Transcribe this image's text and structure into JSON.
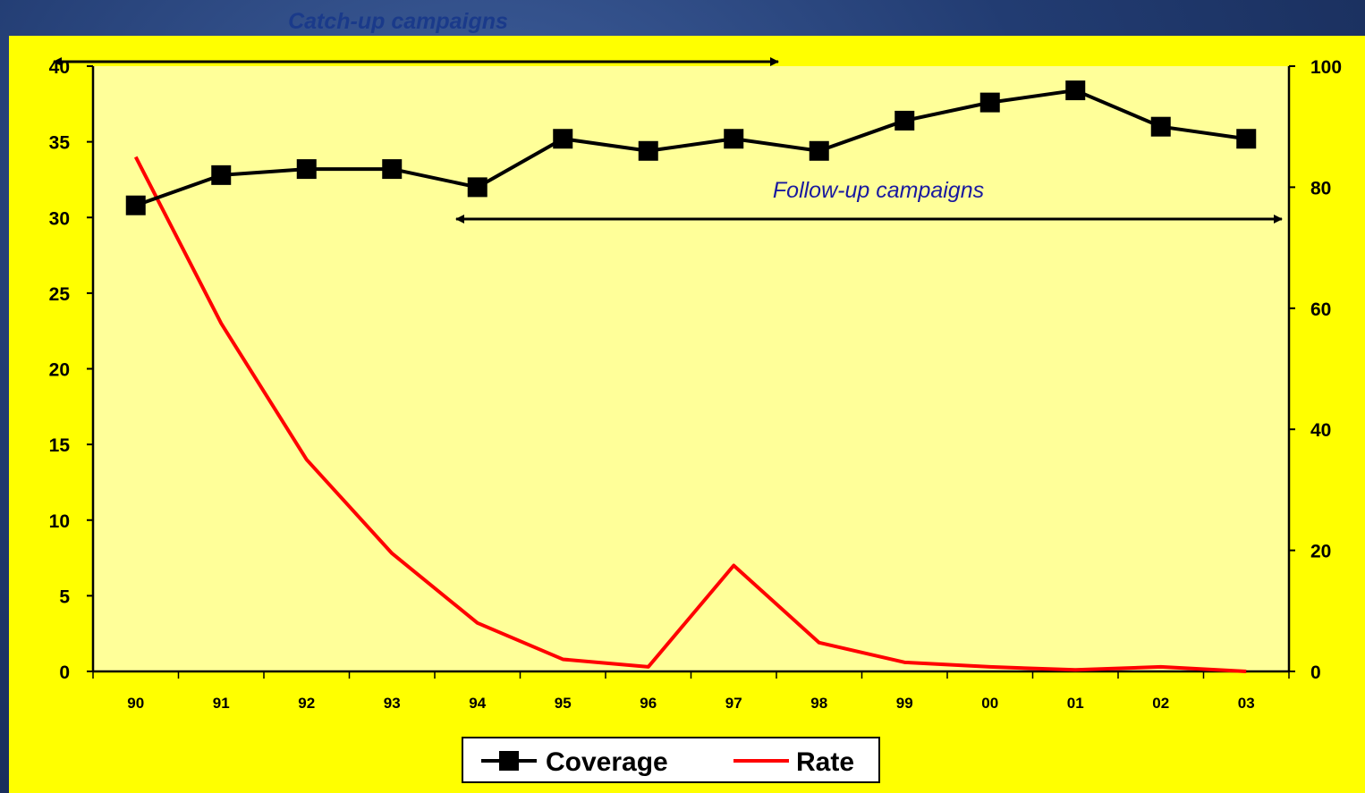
{
  "chart_data": {
    "type": "line",
    "title": "",
    "xlabel": "",
    "ylabel": "",
    "categories": [
      "90",
      "91",
      "92",
      "93",
      "94",
      "95",
      "96",
      "97",
      "98",
      "99",
      "00",
      "01",
      "02",
      "03"
    ],
    "y_left": {
      "ylim": [
        0,
        40
      ],
      "ticks": [
        0,
        5,
        10,
        15,
        20,
        25,
        30,
        35,
        40
      ]
    },
    "y_right": {
      "ylim": [
        0,
        100
      ],
      "ticks": [
        0,
        20,
        40,
        60,
        80,
        100
      ]
    },
    "series": [
      {
        "name": "Coverage",
        "axis": "right",
        "color": "#000000",
        "marker": "square",
        "values": [
          77,
          82,
          83,
          83,
          80,
          88,
          86,
          88,
          86,
          91,
          94,
          96,
          90,
          88
        ]
      },
      {
        "name": "Rate",
        "axis": "left",
        "color": "#ff0000",
        "marker": "none",
        "values": [
          34,
          23,
          14,
          7.8,
          3.2,
          0.8,
          0.3,
          7,
          1.9,
          0.6,
          0.3,
          0.1,
          0.3,
          0
        ]
      }
    ],
    "annotations": [
      {
        "text": "Catch-up campaigns",
        "color": "#1a3a8a",
        "from": "90",
        "to": "97"
      },
      {
        "text": "Follow-up campaigns",
        "color": "#1a1aa0",
        "from": "94",
        "to": "03"
      }
    ],
    "legend": {
      "position": "bottom",
      "entries": [
        "Coverage",
        "Rate"
      ]
    },
    "plot_background": "#ffff99",
    "chart_background": "#ffff00",
    "grid": false
  }
}
